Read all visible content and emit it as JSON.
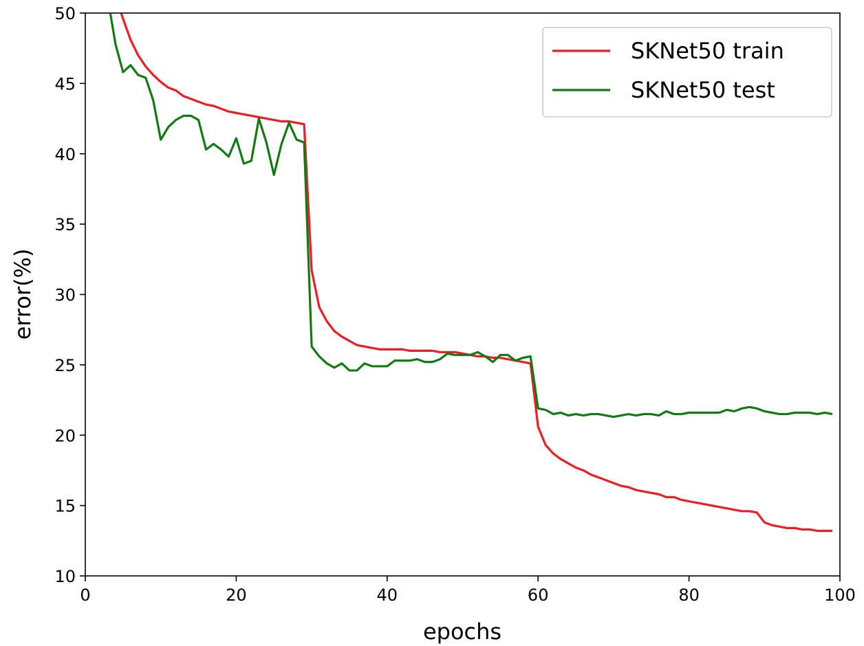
{
  "chart_data": {
    "type": "line",
    "x_label": "epochs",
    "y_label": "error(%)",
    "x": [
      3,
      4,
      5,
      6,
      7,
      8,
      9,
      10,
      11,
      12,
      13,
      14,
      15,
      16,
      17,
      18,
      19,
      20,
      21,
      22,
      23,
      24,
      25,
      26,
      27,
      28,
      29,
      30,
      31,
      32,
      33,
      34,
      35,
      36,
      37,
      38,
      39,
      40,
      41,
      42,
      43,
      44,
      45,
      46,
      47,
      48,
      49,
      50,
      51,
      52,
      53,
      54,
      55,
      56,
      57,
      58,
      59,
      60,
      61,
      62,
      63,
      64,
      65,
      66,
      67,
      68,
      69,
      70,
      71,
      72,
      73,
      74,
      75,
      76,
      77,
      78,
      79,
      80,
      81,
      82,
      83,
      84,
      85,
      86,
      87,
      88,
      89,
      90,
      91,
      92,
      93,
      94,
      95,
      96,
      97,
      98,
      99
    ],
    "series": [
      {
        "name": "SKNet50 train",
        "color": "#ee1c25",
        "values": [
          54,
          51.2,
          49.6,
          48.1,
          47.0,
          46.2,
          45.6,
          45.1,
          44.7,
          44.5,
          44.1,
          43.9,
          43.7,
          43.5,
          43.4,
          43.2,
          43.0,
          42.9,
          42.8,
          42.7,
          42.6,
          42.5,
          42.4,
          42.3,
          42.3,
          42.2,
          42.1,
          31.7,
          29.1,
          28.1,
          27.4,
          27.0,
          26.7,
          26.4,
          26.3,
          26.2,
          26.1,
          26.1,
          26.1,
          26.1,
          26.0,
          26.0,
          26.0,
          26.0,
          25.9,
          25.9,
          25.9,
          25.8,
          25.7,
          25.6,
          25.6,
          25.5,
          25.5,
          25.4,
          25.3,
          25.2,
          25.1,
          20.6,
          19.3,
          18.7,
          18.3,
          18.0,
          17.7,
          17.5,
          17.2,
          17.0,
          16.8,
          16.6,
          16.4,
          16.3,
          16.1,
          16.0,
          15.9,
          15.8,
          15.6,
          15.6,
          15.4,
          15.3,
          15.2,
          15.1,
          15.0,
          14.9,
          14.8,
          14.7,
          14.6,
          14.6,
          14.5,
          13.8,
          13.6,
          13.5,
          13.4,
          13.4,
          13.3,
          13.3,
          13.2,
          13.2,
          13.2
        ]
      },
      {
        "name": "SKNet50 test",
        "color": "#127a12",
        "values": [
          51,
          47.8,
          45.8,
          46.3,
          45.6,
          45.4,
          43.8,
          41.0,
          41.9,
          42.4,
          42.7,
          42.7,
          42.4,
          40.3,
          40.7,
          40.3,
          39.8,
          41.1,
          39.3,
          39.5,
          42.5,
          40.8,
          38.5,
          40.7,
          42.2,
          41.0,
          40.8,
          26.3,
          25.6,
          25.1,
          24.8,
          25.1,
          24.6,
          24.6,
          25.1,
          24.9,
          24.9,
          24.9,
          25.3,
          25.3,
          25.3,
          25.4,
          25.2,
          25.2,
          25.4,
          25.8,
          25.7,
          25.7,
          25.7,
          25.9,
          25.6,
          25.2,
          25.7,
          25.7,
          25.3,
          25.5,
          25.6,
          21.9,
          21.8,
          21.5,
          21.6,
          21.4,
          21.5,
          21.4,
          21.5,
          21.5,
          21.4,
          21.3,
          21.4,
          21.5,
          21.4,
          21.5,
          21.5,
          21.4,
          21.7,
          21.5,
          21.5,
          21.6,
          21.6,
          21.6,
          21.6,
          21.6,
          21.8,
          21.7,
          21.9,
          22.0,
          21.9,
          21.7,
          21.6,
          21.5,
          21.5,
          21.6,
          21.6,
          21.6,
          21.5,
          21.6,
          21.5
        ]
      }
    ],
    "xlim": [
      0,
      100
    ],
    "ylim": [
      10,
      50
    ],
    "xticks": [
      0,
      20,
      40,
      60,
      80,
      100
    ],
    "yticks": [
      10,
      15,
      20,
      25,
      30,
      35,
      40,
      45,
      50
    ],
    "legend": "upper right",
    "grid": false
  }
}
